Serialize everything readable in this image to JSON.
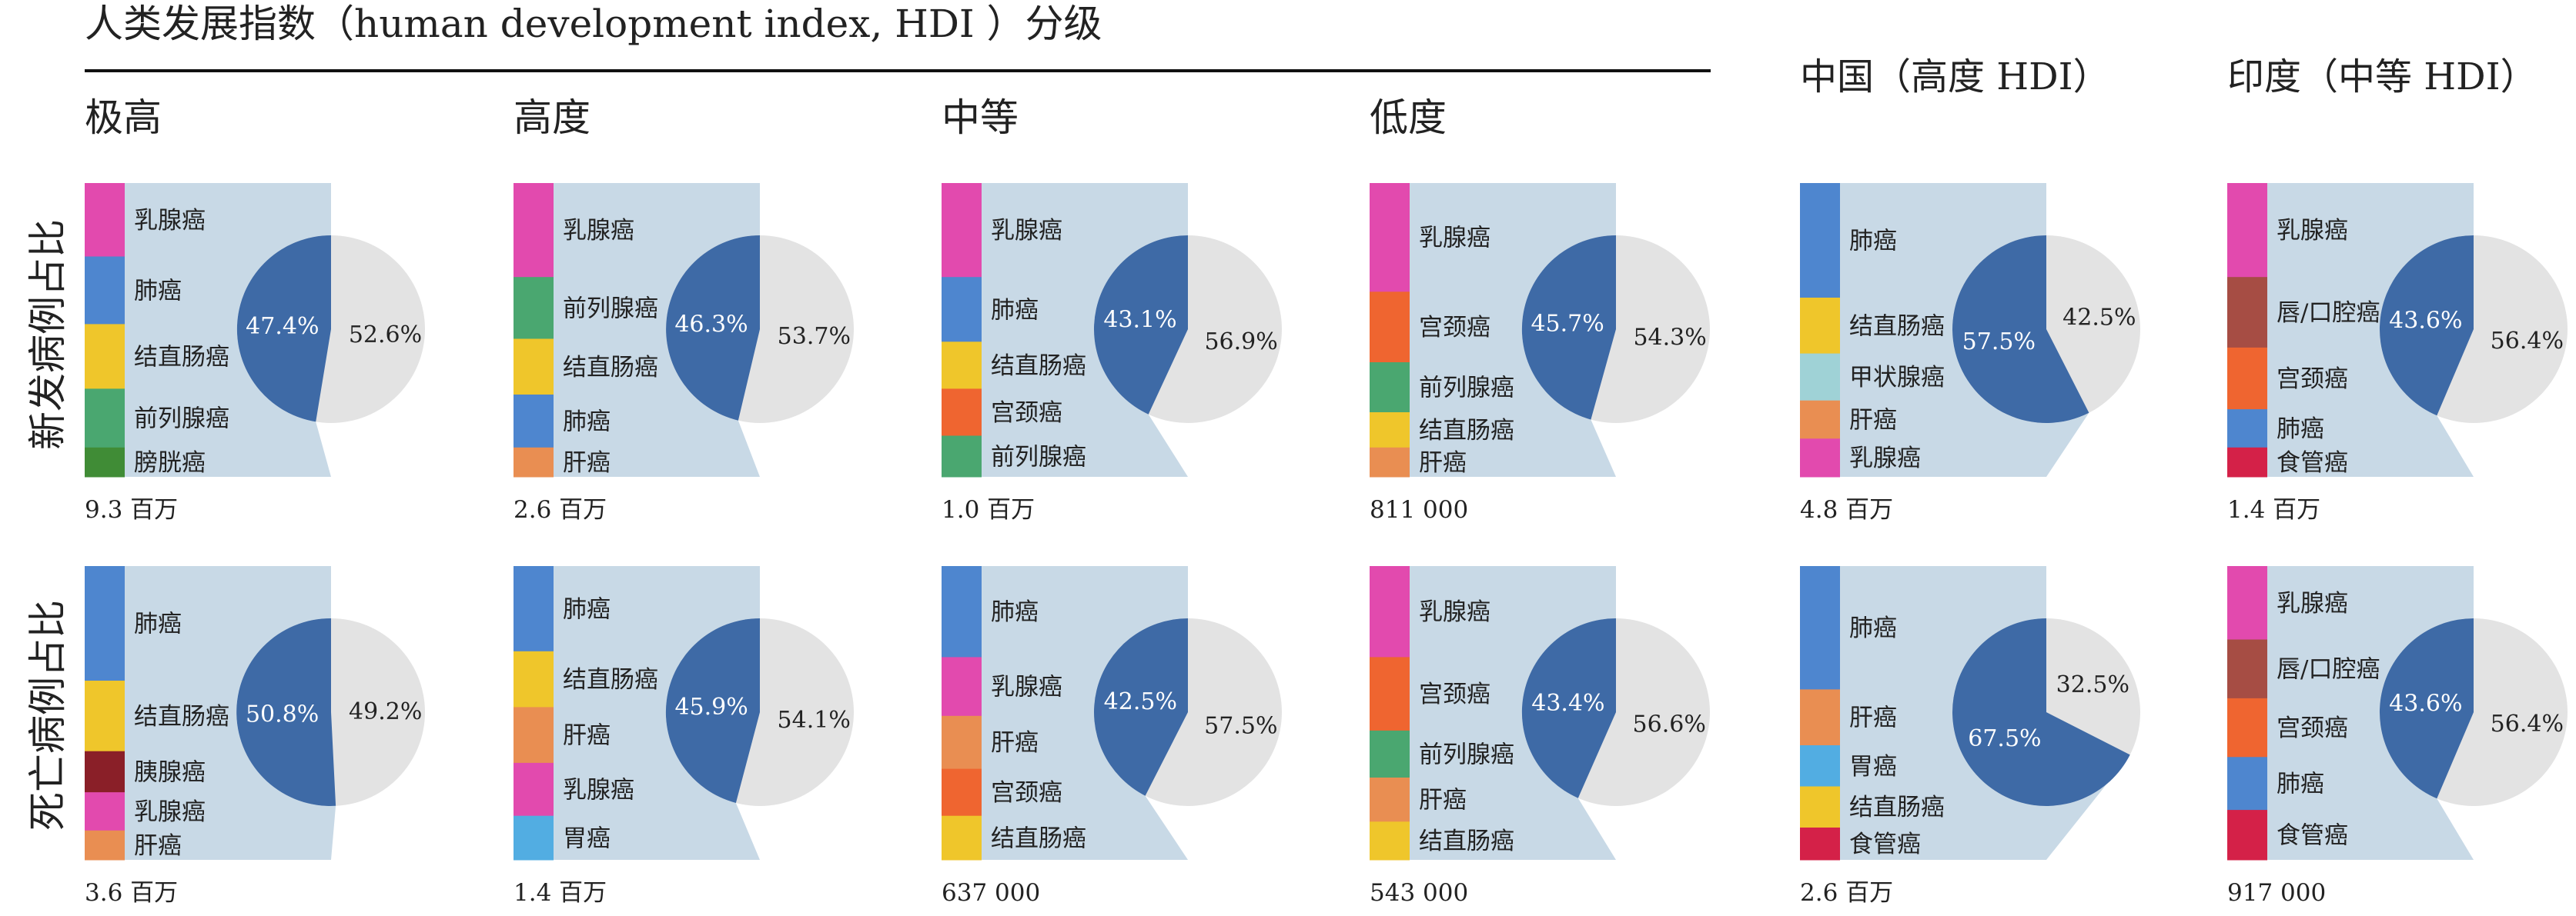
{
  "figure_title": "人类发展指数（human development index, HDI ）分级",
  "row_labels": [
    "新发病例占比",
    "死亡病例占比"
  ],
  "column_headers": [
    "极高",
    "高度",
    "中等",
    "低度",
    "中国（高度 HDI）",
    "印度（中等 HDI）"
  ],
  "colors": {
    "highlight_slice": "#3e6aa6",
    "other_slice": "#e3e3e3",
    "connector_band": "#c8d9e6",
    "乳腺癌": "#e24aae",
    "肺癌": "#4e86cf",
    "结直肠癌": "#efc62b",
    "前列腺癌": "#4aa770",
    "膀胱癌": "#408c36",
    "肝癌": "#e98e52",
    "宫颈癌": "#ef6530",
    "甲状腺癌": "#9fd2d6",
    "唇/口腔癌": "#a64d44",
    "食管癌": "#d42148",
    "胰腺癌": "#8a1f28",
    "胃癌": "#52ade2"
  },
  "chart_data": [
    {
      "type": "pie",
      "group": "极高",
      "metric": "新发病例占比",
      "total": "9.3 百万",
      "slices": [
        {
          "label": "47.4%",
          "value": 47.4
        },
        {
          "label": "52.6%",
          "value": 52.6
        }
      ],
      "top_cancers": [
        {
          "name": "乳腺癌",
          "value": 25
        },
        {
          "name": "肺癌",
          "value": 23
        },
        {
          "name": "结直肠癌",
          "value": 22
        },
        {
          "name": "前列腺癌",
          "value": 20
        },
        {
          "name": "膀胱癌",
          "value": 10
        }
      ]
    },
    {
      "type": "pie",
      "group": "高度",
      "metric": "新发病例占比",
      "total": "2.6 百万",
      "slices": [
        {
          "label": "46.3%",
          "value": 46.3
        },
        {
          "label": "53.7%",
          "value": 53.7
        }
      ],
      "top_cancers": [
        {
          "name": "乳腺癌",
          "value": 32
        },
        {
          "name": "前列腺癌",
          "value": 21
        },
        {
          "name": "结直肠癌",
          "value": 19
        },
        {
          "name": "肺癌",
          "value": 18
        },
        {
          "name": "肝癌",
          "value": 10
        }
      ]
    },
    {
      "type": "pie",
      "group": "中等",
      "metric": "新发病例占比",
      "total": "1.0 百万",
      "slices": [
        {
          "label": "43.1%",
          "value": 43.1
        },
        {
          "label": "56.9%",
          "value": 56.9
        }
      ],
      "top_cancers": [
        {
          "name": "乳腺癌",
          "value": 32
        },
        {
          "name": "肺癌",
          "value": 22
        },
        {
          "name": "结直肠癌",
          "value": 16
        },
        {
          "name": "宫颈癌",
          "value": 16
        },
        {
          "name": "前列腺癌",
          "value": 14
        }
      ]
    },
    {
      "type": "pie",
      "group": "低度",
      "metric": "新发病例占比",
      "total": "811 000",
      "slices": [
        {
          "label": "45.7%",
          "value": 45.7
        },
        {
          "label": "54.3%",
          "value": 54.3
        }
      ],
      "top_cancers": [
        {
          "name": "乳腺癌",
          "value": 37
        },
        {
          "name": "宫颈癌",
          "value": 24
        },
        {
          "name": "前列腺癌",
          "value": 17
        },
        {
          "name": "结直肠癌",
          "value": 12
        },
        {
          "name": "肝癌",
          "value": 10
        }
      ]
    },
    {
      "type": "pie",
      "group": "中国（高度 HDI）",
      "metric": "新发病例占比",
      "total": "4.8 百万",
      "slices": [
        {
          "label": "57.5%",
          "value": 57.5
        },
        {
          "label": "42.5%",
          "value": 42.5
        }
      ],
      "top_cancers": [
        {
          "name": "肺癌",
          "value": 39
        },
        {
          "name": "结直肠癌",
          "value": 19
        },
        {
          "name": "甲状腺癌",
          "value": 16
        },
        {
          "name": "肝癌",
          "value": 13
        },
        {
          "name": "乳腺癌",
          "value": 13
        }
      ]
    },
    {
      "type": "pie",
      "group": "印度（中等 HDI）",
      "metric": "新发病例占比",
      "total": "1.4 百万",
      "slices": [
        {
          "label": "43.6%",
          "value": 43.6
        },
        {
          "label": "56.4%",
          "value": 56.4
        }
      ],
      "top_cancers": [
        {
          "name": "乳腺癌",
          "value": 32
        },
        {
          "name": "唇/口腔癌",
          "value": 24
        },
        {
          "name": "宫颈癌",
          "value": 21
        },
        {
          "name": "肺癌",
          "value": 13
        },
        {
          "name": "食管癌",
          "value": 10
        }
      ]
    },
    {
      "type": "pie",
      "group": "极高",
      "metric": "死亡病例占比",
      "total": "3.6 百万",
      "slices": [
        {
          "label": "50.8%",
          "value": 50.8
        },
        {
          "label": "49.2%",
          "value": 49.2
        }
      ],
      "top_cancers": [
        {
          "name": "肺癌",
          "value": 39
        },
        {
          "name": "结直肠癌",
          "value": 24
        },
        {
          "name": "胰腺癌",
          "value": 14
        },
        {
          "name": "乳腺癌",
          "value": 13
        },
        {
          "name": "肝癌",
          "value": 10
        }
      ]
    },
    {
      "type": "pie",
      "group": "高度",
      "metric": "死亡病例占比",
      "total": "1.4 百万",
      "slices": [
        {
          "label": "45.9%",
          "value": 45.9
        },
        {
          "label": "54.1%",
          "value": 54.1
        }
      ],
      "top_cancers": [
        {
          "name": "肺癌",
          "value": 29
        },
        {
          "name": "结直肠癌",
          "value": 19
        },
        {
          "name": "肝癌",
          "value": 19
        },
        {
          "name": "乳腺癌",
          "value": 18
        },
        {
          "name": "胃癌",
          "value": 15
        }
      ]
    },
    {
      "type": "pie",
      "group": "中等",
      "metric": "死亡病例占比",
      "total": "637 000",
      "slices": [
        {
          "label": "42.5%",
          "value": 42.5
        },
        {
          "label": "57.5%",
          "value": 57.5
        }
      ],
      "top_cancers": [
        {
          "name": "肺癌",
          "value": 31
        },
        {
          "name": "乳腺癌",
          "value": 20
        },
        {
          "name": "肝癌",
          "value": 18
        },
        {
          "name": "宫颈癌",
          "value": 16
        },
        {
          "name": "结直肠癌",
          "value": 15
        }
      ]
    },
    {
      "type": "pie",
      "group": "低度",
      "metric": "死亡病例占比",
      "total": "543 000",
      "slices": [
        {
          "label": "43.4%",
          "value": 43.4
        },
        {
          "label": "56.6%",
          "value": 56.6
        }
      ],
      "top_cancers": [
        {
          "name": "乳腺癌",
          "value": 31
        },
        {
          "name": "宫颈癌",
          "value": 25
        },
        {
          "name": "前列腺癌",
          "value": 16
        },
        {
          "name": "肝癌",
          "value": 15
        },
        {
          "name": "结直肠癌",
          "value": 13
        }
      ]
    },
    {
      "type": "pie",
      "group": "中国（高度 HDI）",
      "metric": "死亡病例占比",
      "total": "2.6 百万",
      "slices": [
        {
          "label": "67.5%",
          "value": 67.5
        },
        {
          "label": "32.5%",
          "value": 32.5
        }
      ],
      "top_cancers": [
        {
          "name": "肺癌",
          "value": 42
        },
        {
          "name": "肝癌",
          "value": 19
        },
        {
          "name": "胃癌",
          "value": 14
        },
        {
          "name": "结直肠癌",
          "value": 14
        },
        {
          "name": "食管癌",
          "value": 11
        }
      ]
    },
    {
      "type": "pie",
      "group": "印度（中等 HDI）",
      "metric": "死亡病例占比",
      "total": "917 000",
      "slices": [
        {
          "label": "43.6%",
          "value": 43.6
        },
        {
          "label": "56.4%",
          "value": 56.4
        }
      ],
      "top_cancers": [
        {
          "name": "乳腺癌",
          "value": 25
        },
        {
          "name": "唇/口腔癌",
          "value": 20
        },
        {
          "name": "宫颈癌",
          "value": 20
        },
        {
          "name": "肺癌",
          "value": 18
        },
        {
          "name": "食管癌",
          "value": 17
        }
      ]
    }
  ]
}
